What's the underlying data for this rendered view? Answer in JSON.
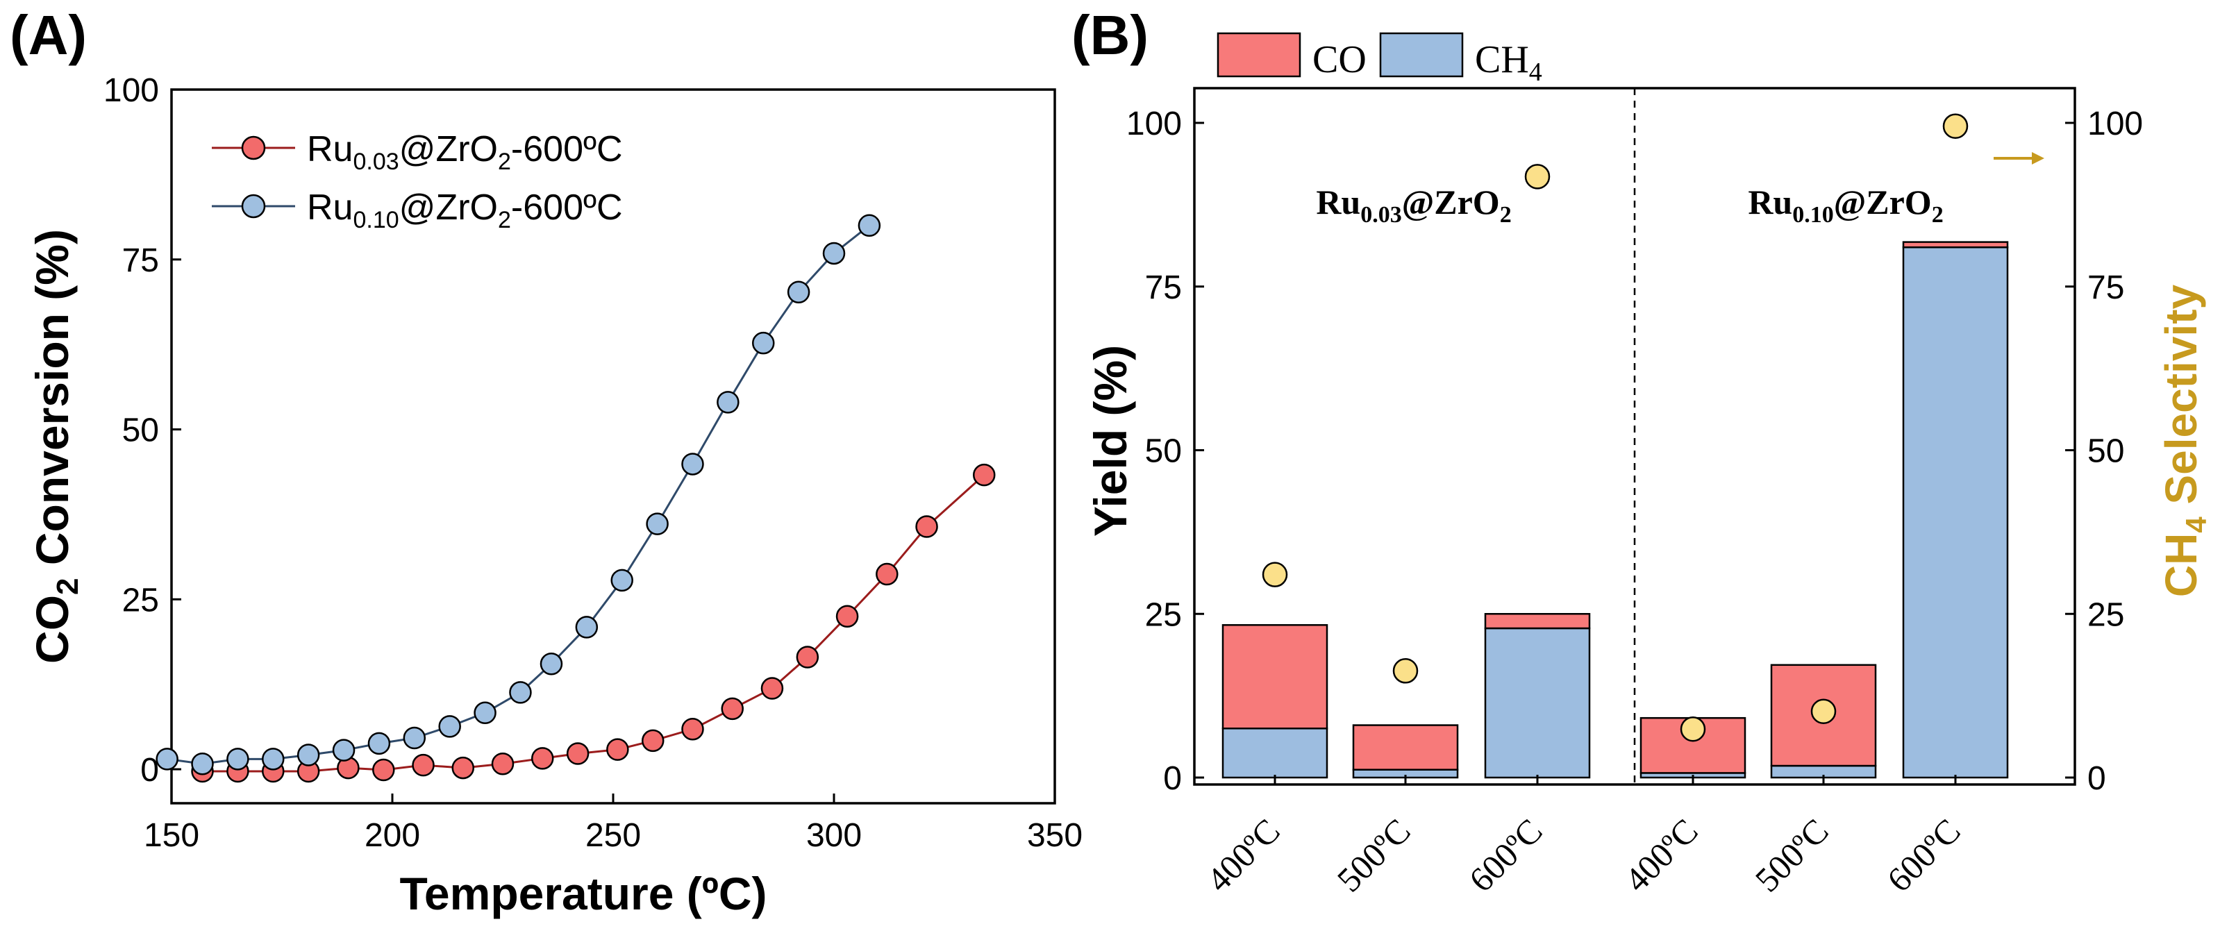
{
  "colors": {
    "red_line": "#9b1c1c",
    "red_fill": "#f26b6b",
    "blue_line": "#2f4a6a",
    "blue_fill": "#9fbfe0",
    "co_fill": "#f77a7a",
    "ch4_fill": "#9dbde0",
    "selectivity_fill": "#fbe08a",
    "selectivity_label": "#c79a1e",
    "arrow": "#c79a1e"
  },
  "panel_a": {
    "label": "(A)",
    "legend": [
      {
        "base": "Ru",
        "sub": "0.03",
        "tail1": "@ZrO",
        "sub2": "2",
        "tail2": "-600ºC"
      },
      {
        "base": "Ru",
        "sub": "0.10",
        "tail1": "@ZrO",
        "sub2": "2",
        "tail2": "-600ºC"
      }
    ],
    "ylabel": {
      "pre": "CO",
      "sub": "2",
      "post": " Conversion (%)"
    },
    "xlabel": "Temperature (ºC)"
  },
  "panel_b": {
    "label": "(B)",
    "legend": [
      {
        "text": "CO",
        "sub": ""
      },
      {
        "text": "CH",
        "sub": "4"
      }
    ],
    "ylabel": "Yield (%)",
    "ylabel_right": {
      "pre": "CH",
      "sub": "4",
      "post": " Selectivity"
    },
    "group_labels": [
      {
        "base": "Ru",
        "sub": "0.03",
        "tail": "@ZrO",
        "sub2": "2"
      },
      {
        "base": "Ru",
        "sub": "0.10",
        "tail": "@ZrO",
        "sub2": "2"
      }
    ]
  },
  "chart_data": [
    {
      "type": "line",
      "title": "(A)",
      "xlabel": "Temperature (ºC)",
      "ylabel": "CO2 Conversion (%)",
      "xlim": [
        150,
        350
      ],
      "ylim": [
        -5,
        100
      ],
      "xticks": [
        150,
        200,
        250,
        300,
        350
      ],
      "yticks": [
        0,
        25,
        50,
        75,
        100
      ],
      "legend_position": "top-left",
      "series": [
        {
          "name": "Ru0.03@ZrO2-600ºC",
          "x": [
            157,
            165,
            173,
            181,
            190,
            198,
            207,
            216,
            225,
            234,
            242,
            251,
            259,
            268,
            277,
            286,
            294,
            303,
            312,
            321,
            334
          ],
          "y": [
            -0.3,
            -0.3,
            -0.3,
            -0.3,
            0.2,
            -0.1,
            0.6,
            0.2,
            0.8,
            1.6,
            2.3,
            2.9,
            4.2,
            5.9,
            8.9,
            11.9,
            16.5,
            22.5,
            28.7,
            35.7,
            43.3
          ]
        },
        {
          "name": "Ru0.10@ZrO2-600ºC",
          "x": [
            149,
            157,
            165,
            173,
            181,
            189,
            197,
            205,
            213,
            221,
            229,
            236,
            244,
            252,
            260,
            268,
            276,
            284,
            292,
            300,
            308
          ],
          "y": [
            1.5,
            0.8,
            1.5,
            1.5,
            2.1,
            2.8,
            3.8,
            4.6,
            6.3,
            8.3,
            11.3,
            15.5,
            20.9,
            27.8,
            36.1,
            44.9,
            54.0,
            62.7,
            70.2,
            75.9,
            80.0
          ]
        }
      ]
    },
    {
      "type": "bar",
      "title": "(B)",
      "stacked": true,
      "ylabel": "Yield (%)",
      "ylabel_right": "CH4 Selectivity",
      "ylim": [
        0,
        100
      ],
      "ylim_right": [
        0,
        100
      ],
      "yticks": [
        0,
        25,
        50,
        75,
        100
      ],
      "categories": [
        "400ºC",
        "500ºC",
        "600ºC",
        "400ºC",
        "500ºC",
        "600ºC"
      ],
      "groups": [
        "Ru0.03@ZrO2",
        "Ru0.10@ZrO2"
      ],
      "legend_position": "top",
      "series": [
        {
          "name": "CH4",
          "values": [
            7.5,
            1.2,
            22.8,
            0.7,
            1.8,
            81.0
          ]
        },
        {
          "name": "CO",
          "values": [
            15.8,
            6.8,
            2.2,
            8.4,
            15.4,
            0.8
          ]
        },
        {
          "name": "CH4 Selectivity",
          "axis": "right",
          "values": [
            31.0,
            16.3,
            91.8,
            7.4,
            10.1,
            99.5
          ]
        }
      ]
    }
  ]
}
